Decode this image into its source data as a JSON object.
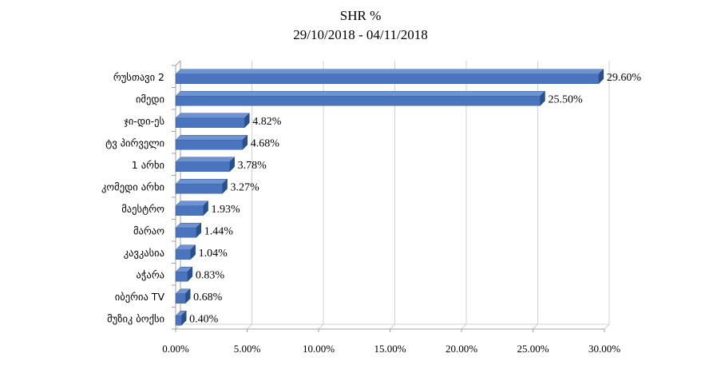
{
  "chart_data": {
    "type": "bar",
    "orientation": "horizontal",
    "title": "SHR %",
    "subtitle": "29/10/2018 - 04/11/2018",
    "categories": [
      "რუსთავი 2",
      "იმედი",
      "ჯი-დი-ეს",
      "ტვ პირველი",
      "1 არხი",
      "კომედი არხი",
      "მაესტრო",
      "მარაო",
      "კავკასია",
      "აჭარა",
      "იბერია TV",
      "მუზიკ ბოქსი"
    ],
    "values": [
      29.6,
      25.5,
      4.82,
      4.68,
      3.78,
      3.27,
      1.93,
      1.44,
      1.04,
      0.83,
      0.68,
      0.4
    ],
    "value_labels": [
      "29.60%",
      "25.50%",
      "4.82%",
      "4.68%",
      "3.78%",
      "3.27%",
      "1.93%",
      "1.44%",
      "1.04%",
      "0.83%",
      "0.68%",
      "0.40%"
    ],
    "x_ticks": [
      0,
      5,
      10,
      15,
      20,
      25,
      30
    ],
    "x_tick_labels": [
      "0.00%",
      "5.00%",
      "10.00%",
      "15.00%",
      "20.00%",
      "25.00%",
      "30.00%"
    ],
    "xlim": [
      0,
      30
    ],
    "xlabel": "",
    "ylabel": "",
    "grid": true,
    "legend": "none",
    "colors": {
      "bar_front": "#4a74bd",
      "bar_top": "#6d93d3",
      "bar_side": "#2c4f8c",
      "gridline": "#d0d0d0",
      "axis": "#a0a0a0"
    }
  }
}
